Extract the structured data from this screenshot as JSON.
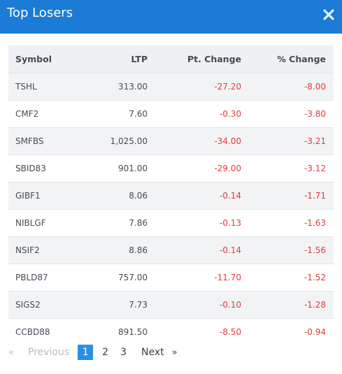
{
  "header": {
    "title": "Top Losers",
    "close_icon": "close-icon"
  },
  "table": {
    "columns": {
      "symbol": "Symbol",
      "ltp": "LTP",
      "pt_change": "Pt. Change",
      "pct_change": "% Change"
    },
    "rows": [
      {
        "symbol": "TSHL",
        "ltp": "313.00",
        "pt_change": "-27.20",
        "pct_change": "-8.00"
      },
      {
        "symbol": "CMF2",
        "ltp": "7.60",
        "pt_change": "-0.30",
        "pct_change": "-3.80"
      },
      {
        "symbol": "SMFBS",
        "ltp": "1,025.00",
        "pt_change": "-34.00",
        "pct_change": "-3.21"
      },
      {
        "symbol": "SBID83",
        "ltp": "901.00",
        "pt_change": "-29.00",
        "pct_change": "-3.12"
      },
      {
        "symbol": "GIBF1",
        "ltp": "8.06",
        "pt_change": "-0.14",
        "pct_change": "-1.71"
      },
      {
        "symbol": "NIBLGF",
        "ltp": "7.86",
        "pt_change": "-0.13",
        "pct_change": "-1.63"
      },
      {
        "symbol": "NSIF2",
        "ltp": "8.86",
        "pt_change": "-0.14",
        "pct_change": "-1.56"
      },
      {
        "symbol": "PBLD87",
        "ltp": "757.00",
        "pt_change": "-11.70",
        "pct_change": "-1.52"
      },
      {
        "symbol": "SIGS2",
        "ltp": "7.73",
        "pt_change": "-0.10",
        "pct_change": "-1.28"
      },
      {
        "symbol": "CCBD88",
        "ltp": "891.50",
        "pt_change": "-8.50",
        "pct_change": "-0.94"
      }
    ]
  },
  "pagination": {
    "prev_arrow": "«",
    "prev_label": "Previous",
    "pages": [
      "1",
      "2",
      "3"
    ],
    "current_page": "1",
    "next_label": "Next",
    "next_arrow": "»"
  },
  "colors": {
    "header_bg": "#1c7bd6",
    "negative": "#e23b3b",
    "active_page": "#2b8fe0",
    "row_alt": "#f2f3f5"
  }
}
